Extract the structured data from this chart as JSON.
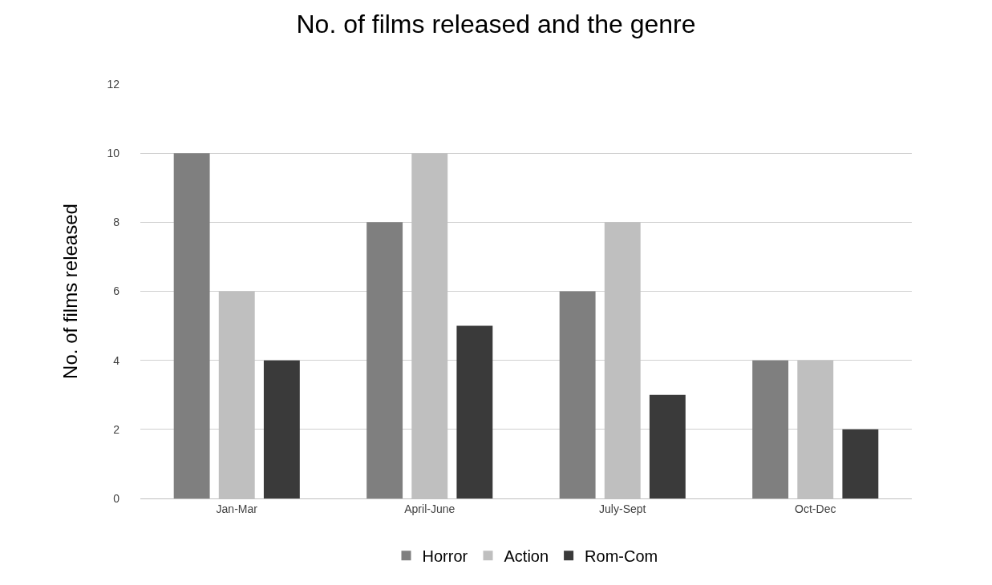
{
  "chart_data": {
    "type": "bar",
    "title": "No. of films released and the genre",
    "ylabel": "No. of films released",
    "categories": [
      "Jan-Mar",
      "April-June",
      "July-Sept",
      "Oct-Dec"
    ],
    "series": [
      {
        "name": "Horror",
        "color": "#7f7f7f",
        "values": [
          10,
          8,
          6,
          4
        ]
      },
      {
        "name": "Action",
        "color": "#bfbfbf",
        "values": [
          6,
          10,
          8,
          4
        ]
      },
      {
        "name": "Rom-Com",
        "color": "#3a3a3a",
        "values": [
          4,
          5,
          3,
          2
        ]
      }
    ],
    "ylim": [
      0,
      12
    ],
    "yticks": [
      0,
      2,
      4,
      6,
      8,
      10,
      12
    ],
    "grid": "y",
    "legend": "bottom"
  }
}
